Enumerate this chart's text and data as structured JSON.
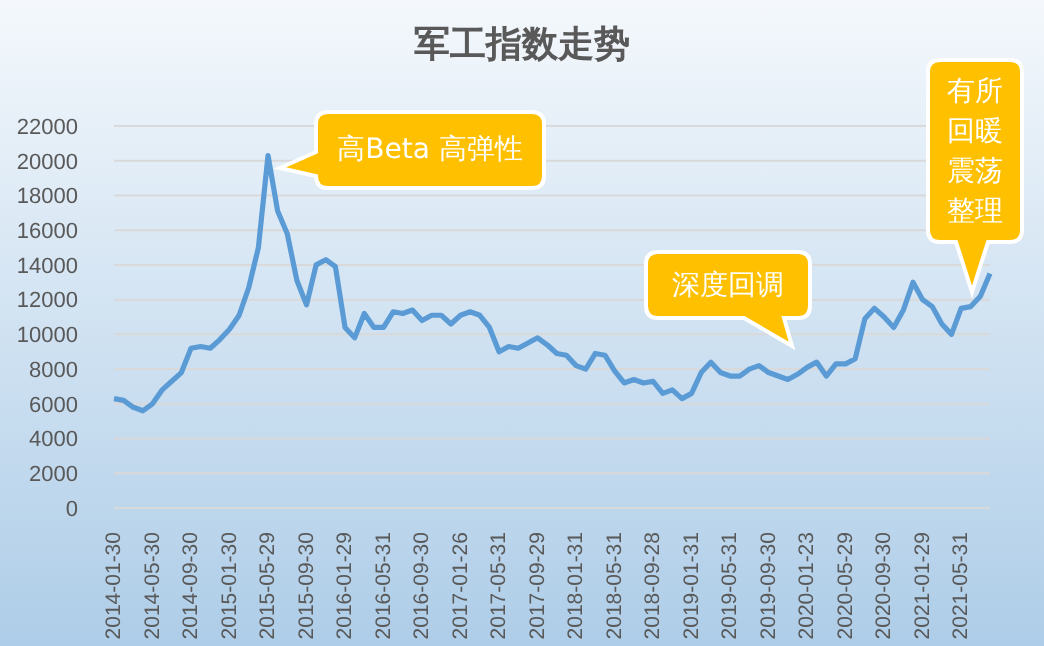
{
  "chart_data": {
    "type": "line",
    "title": "军工指数走势",
    "categories": [
      "2014-01-30",
      null,
      null,
      null,
      "2014-05-30",
      null,
      null,
      null,
      "2014-09-30",
      null,
      null,
      null,
      "2015-01-30",
      null,
      null,
      null,
      "2015-05-29",
      null,
      null,
      null,
      "2015-09-30",
      null,
      null,
      null,
      "2016-01-29",
      null,
      null,
      null,
      "2016-05-31",
      null,
      null,
      null,
      "2016-09-30",
      null,
      null,
      null,
      "2017-01-26",
      null,
      null,
      null,
      "2017-05-31",
      null,
      null,
      null,
      "2017-09-29",
      null,
      null,
      null,
      "2018-01-31",
      null,
      null,
      null,
      "2018-05-31",
      null,
      null,
      null,
      "2018-09-28",
      null,
      null,
      null,
      "2019-01-31",
      null,
      null,
      null,
      "2019-05-31",
      null,
      null,
      null,
      "2019-09-30",
      null,
      null,
      null,
      "2020-01-23",
      null,
      null,
      null,
      "2020-05-29",
      null,
      null,
      null,
      "2020-09-30",
      null,
      null,
      null,
      "2021-01-29",
      null,
      null,
      null,
      "2021-05-31",
      null,
      null,
      null
    ],
    "series": [
      {
        "color": "#5b9bd5",
        "values": [
          6300,
          6200,
          5800,
          5600,
          6000,
          6800,
          7300,
          7800,
          9200,
          9300,
          9200,
          9700,
          10300,
          11100,
          12700,
          15000,
          20300,
          17100,
          15800,
          13100,
          11700,
          14000,
          14300,
          13900,
          10400,
          9800,
          11200,
          10400,
          10400,
          11300,
          11200,
          11400,
          10800,
          11100,
          11100,
          10600,
          11100,
          11300,
          11100,
          10400,
          9000,
          9300,
          9200,
          9500,
          9800,
          9400,
          8900,
          8800,
          8200,
          8000,
          8900,
          8800,
          7900,
          7200,
          7400,
          7200,
          7300,
          6600,
          6800,
          6300,
          6600,
          7800,
          8400,
          7800,
          7600,
          7600,
          8000,
          8200,
          7800,
          7600,
          7400,
          7700,
          8100,
          8400,
          7600,
          8300,
          8300,
          8600,
          10900,
          11500,
          11000,
          10400,
          11400,
          13000,
          12000,
          11600,
          10600,
          10000,
          11500,
          11600,
          12200,
          13500
        ]
      }
    ],
    "ylim": [
      0,
      22000
    ],
    "yticks": [
      0,
      2000,
      4000,
      6000,
      8000,
      10000,
      12000,
      14000,
      16000,
      18000,
      20000,
      22000
    ],
    "grid": "y",
    "annotations": [
      "高Beta 高弹性",
      "深度回调",
      "有所回暖震荡整理"
    ]
  }
}
